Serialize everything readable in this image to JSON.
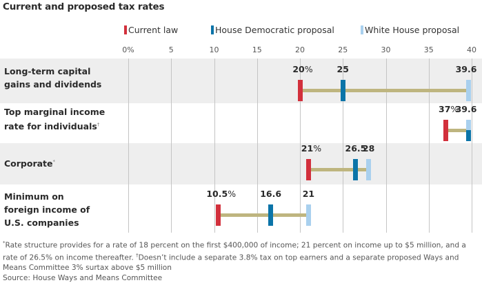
{
  "title": "Current and proposed tax rates",
  "legend": [
    {
      "label": "Current law",
      "color": "#d2303c"
    },
    {
      "label": "House Democratic proposal",
      "color": "#0b74a8"
    },
    {
      "label": "White House proposal",
      "color": "#a9d0ee"
    }
  ],
  "colors": {
    "range_bar": "#beb57f",
    "band_gray": "#eeeeee",
    "gridline": "#c4c4c4"
  },
  "chart_data": {
    "type": "dot-range",
    "title": "Current and proposed tax rates",
    "xlabel": "",
    "ylabel": "",
    "xlim": [
      0,
      40
    ],
    "x_ticks": [
      0,
      5,
      10,
      15,
      20,
      25,
      30,
      35,
      40
    ],
    "x_tick_labels": [
      "0%",
      "5",
      "10",
      "15",
      "20",
      "25",
      "30",
      "35",
      "40"
    ],
    "grid": true,
    "legend_position": "top",
    "series": [
      {
        "name": "Current law",
        "color": "#d2303c",
        "values": [
          20,
          37,
          21,
          10.5
        ]
      },
      {
        "name": "House Democratic proposal",
        "color": "#0b74a8",
        "values": [
          25,
          39.6,
          26.5,
          16.6
        ]
      },
      {
        "name": "White House proposal",
        "color": "#a9d0ee",
        "values": [
          39.6,
          39.6,
          28,
          21
        ]
      }
    ],
    "categories": [
      "Long-term capital gains and dividends",
      "Top marginal income rate for individuals†",
      "Corporate*",
      "Minimum on foreign income of U.S. companies"
    ],
    "rows": [
      {
        "label_lines": [
          "Long-term capital",
          "gains and dividends"
        ],
        "note_mark": "",
        "labels": [
          {
            "text": "20",
            "pct": true,
            "of": 0
          },
          {
            "text": "25",
            "pct": false,
            "of": 1
          },
          {
            "text": "39.6",
            "pct": false,
            "of": 2
          }
        ]
      },
      {
        "label_lines": [
          "Top marginal income",
          "rate for individuals"
        ],
        "note_mark": "†",
        "labels": [
          {
            "text": "37",
            "pct": true,
            "of": 0
          },
          {
            "text": "39.6",
            "pct": false,
            "of": 2
          }
        ]
      },
      {
        "label_lines": [
          "Corporate"
        ],
        "note_mark": "*",
        "labels": [
          {
            "text": "21",
            "pct": true,
            "of": 0
          },
          {
            "text": "26.5",
            "pct": false,
            "of": 1
          },
          {
            "text": "28",
            "pct": false,
            "of": 2
          }
        ]
      },
      {
        "label_lines": [
          "Minimum on",
          "foreign income of",
          "U.S. companies"
        ],
        "note_mark": "",
        "labels": [
          {
            "text": "10.5",
            "pct": true,
            "of": 0
          },
          {
            "text": "16.6",
            "pct": false,
            "of": 1
          },
          {
            "text": "21",
            "pct": false,
            "of": 2
          }
        ]
      }
    ]
  },
  "footnote": {
    "mark1": "*",
    "text1": "Rate structure provides for a rate of 18 percent on the first $400,000 of income; 21 percent on income up to $5 million, and a rate of 26.5% on income thereafter.",
    "mark2": "†",
    "text2": "Doesn’t include a separate 3.8% tax on top earners and a separate proposed Ways and Means Committee 3% surtax above $5 million",
    "source": "Source: House Ways and Means Committee"
  }
}
